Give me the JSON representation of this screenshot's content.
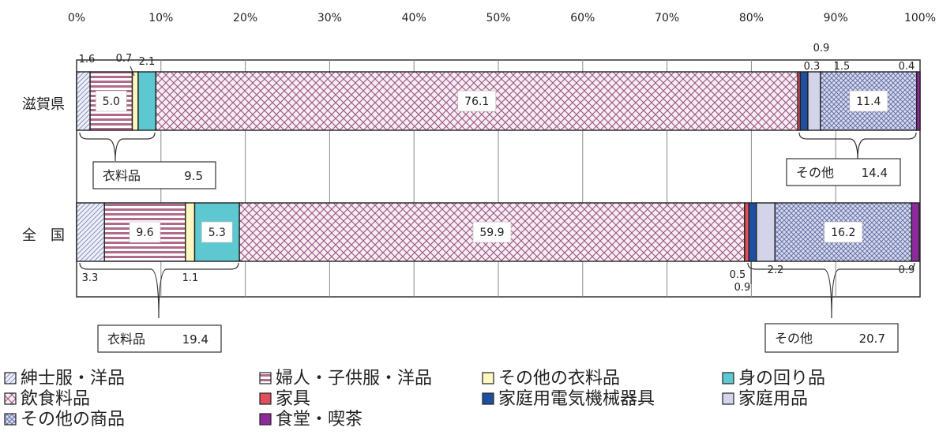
{
  "chart_data": {
    "type": "bar",
    "stacked": true,
    "orientation": "horizontal",
    "percent_scale": true,
    "xlim": [
      0,
      100
    ],
    "x_ticks": [
      "0%",
      "10%",
      "20%",
      "30%",
      "40%",
      "50%",
      "60%",
      "70%",
      "80%",
      "90%",
      "100%"
    ],
    "categories": [
      "滋賀県",
      "全　国"
    ],
    "series": [
      {
        "name": "紳士服・洋品",
        "color": "#d9dcee",
        "values": [
          1.6,
          3.3
        ]
      },
      {
        "name": "婦人・子供服・洋品",
        "color": "#f2e2ea",
        "values": [
          5.0,
          9.6
        ]
      },
      {
        "name": "その他の衣料品",
        "color": "#fdf7c0",
        "values": [
          0.7,
          1.1
        ]
      },
      {
        "name": "身の回り品",
        "color": "#5ec8d0",
        "values": [
          2.1,
          5.3
        ]
      },
      {
        "name": "飲食料品",
        "color": "#f3e6f0",
        "values": [
          76.1,
          59.9
        ]
      },
      {
        "name": "家具",
        "color": "#e0505a",
        "values": [
          0.3,
          0.5
        ]
      },
      {
        "name": "家庭用電気機械器具",
        "color": "#1f4fa0",
        "values": [
          0.9,
          0.9
        ]
      },
      {
        "name": "家庭用品",
        "color": "#d3d3ea",
        "values": [
          1.5,
          2.2
        ]
      },
      {
        "name": "その他の商品",
        "color": "#c0c6e0",
        "values": [
          11.4,
          16.2
        ]
      },
      {
        "name": "食堂・喫茶",
        "color": "#8d2b9c",
        "values": [
          0.4,
          0.9
        ]
      }
    ],
    "outside_labels": [
      [
        "1.6",
        "0.7",
        "2.1",
        "0.3",
        "0.9",
        "1.5",
        "0.4"
      ],
      [
        "3.3",
        "1.1",
        "0.5",
        "0.9",
        "2.2",
        "0.9"
      ]
    ],
    "inside_labels": [
      [
        "5.0",
        "76.1",
        "11.4"
      ],
      [
        "9.6",
        "5.3",
        "59.9",
        "16.2"
      ]
    ],
    "group_annotations": [
      {
        "label": "衣料品",
        "value": "9.5"
      },
      {
        "label": "その他",
        "value": "14.4"
      },
      {
        "label": "衣料品",
        "value": "19.4"
      },
      {
        "label": "その他",
        "value": "20.7"
      }
    ],
    "legend_position": "bottom",
    "grid": true
  }
}
